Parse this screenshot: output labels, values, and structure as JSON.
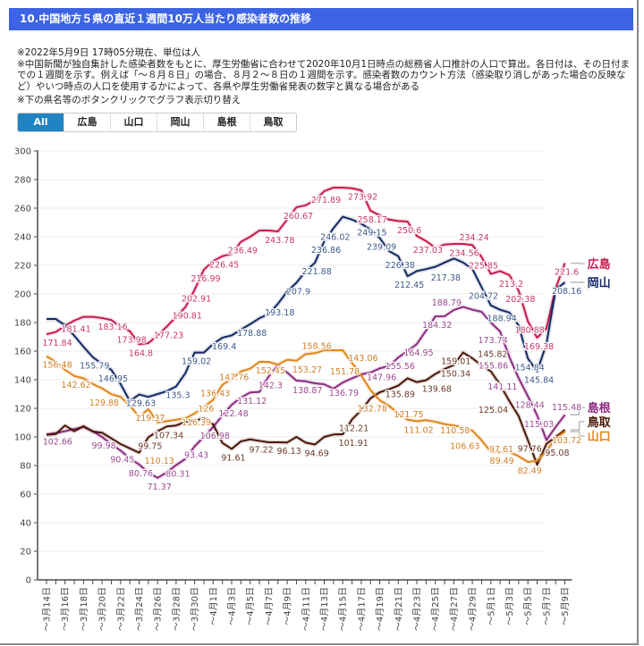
{
  "header": {
    "title": "10.中国地方５県の直近１週間10万人当たり感染者数の推移"
  },
  "notes": [
    "※2022年5月9日 17時05分現在、単位は人",
    "※中国新聞が独自集計した感染者数をもとに、厚生労働省に合わせて2020年10月1日時点の総務省人口推計の人口で算出。各日付は、その日付までの１週間を示す。例えば「～８月８日」の場合、８月２～８日の１週間を示す。感染者数のカウント方法（感染取り消しがあった場合の反映など）やいつ時点の人口を使用するかによって、各県や厚生労働省発表の数字と異なる場合がある",
    "※下の県名等のボタンクリックでグラフ表示切り替え"
  ],
  "buttons": [
    {
      "label": "All",
      "active": true
    },
    {
      "label": "広島",
      "active": false
    },
    {
      "label": "山口",
      "active": false
    },
    {
      "label": "岡山",
      "active": false
    },
    {
      "label": "島根",
      "active": false
    },
    {
      "label": "鳥取",
      "active": false
    }
  ],
  "chart_data": {
    "type": "line",
    "title": "",
    "xlabel": "",
    "ylabel": "",
    "ylim": [
      0,
      300
    ],
    "yticks": [
      0,
      20,
      40,
      60,
      80,
      100,
      120,
      140,
      160,
      180,
      200,
      220,
      240,
      260,
      280,
      300
    ],
    "grid": true,
    "legend": "right",
    "x": [
      "3/14",
      "3/15",
      "3/16",
      "3/17",
      "3/18",
      "3/19",
      "3/20",
      "3/21",
      "3/22",
      "3/23",
      "3/24",
      "3/25",
      "3/26",
      "3/27",
      "3/28",
      "3/29",
      "3/30",
      "3/31",
      "4/1",
      "4/2",
      "4/3",
      "4/4",
      "4/5",
      "4/6",
      "4/7",
      "4/8",
      "4/9",
      "4/10",
      "4/11",
      "4/12",
      "4/13",
      "4/14",
      "4/15",
      "4/16",
      "4/17",
      "4/18",
      "4/19",
      "4/20",
      "4/21",
      "4/22",
      "4/23",
      "4/24",
      "4/25",
      "4/26",
      "4/27",
      "4/28",
      "4/29",
      "4/30",
      "5/1",
      "5/2",
      "5/3",
      "5/4",
      "5/5",
      "5/6",
      "5/7",
      "5/8",
      "5/9"
    ],
    "xtick_labels": [
      "～3月14日",
      "～3月16日",
      "～3月18日",
      "～3月20日",
      "～3月22日",
      "～3月24日",
      "～3月26日",
      "～3月28日",
      "～3月30日",
      "～4月1日",
      "～4月3日",
      "～4月5日",
      "～4月7日",
      "～4月9日",
      "～4月11日",
      "～4月13日",
      "～4月15日",
      "～4月17日",
      "～4月19日",
      "～4月21日",
      "～4月23日",
      "～4月25日",
      "～4月27日",
      "～4月29日",
      "～5月1日",
      "～5月3日",
      "～5月5日",
      "～5月7日",
      "～5月9日"
    ],
    "series": [
      {
        "name": "広島",
        "color": "#c81a4b",
        "label_color": "#c8386a",
        "values": [
          171.84,
          173.4,
          177.7,
          181.41,
          184,
          184,
          183.16,
          181.8,
          177,
          173.98,
          164.8,
          165.6,
          171,
          177.23,
          184,
          190.81,
          202.91,
          216.99,
          223,
          226.45,
          228,
          236.49,
          240,
          244.4,
          244.4,
          243.78,
          252,
          260.67,
          262,
          265.6,
          271.89,
          274.4,
          274.4,
          273.92,
          272.5,
          258.17,
          255,
          252,
          251,
          250.6,
          240.6,
          237.03,
          232.3,
          234.56,
          235,
          235,
          234.24,
          225.85,
          214,
          216,
          213.2,
          202.38,
          180.88,
          169.38,
          176,
          204,
          221.6
        ],
        "labeled": [
          0,
          3,
          6,
          9,
          10,
          13,
          15,
          16,
          17,
          19,
          21,
          25,
          27,
          30,
          33,
          35,
          39,
          41,
          43,
          46,
          47,
          50,
          51,
          52,
          53,
          56
        ]
      },
      {
        "name": "岡山",
        "color": "#142a66",
        "label_color": "#3d5a8a",
        "values": [
          182.5,
          182.5,
          178,
          170.8,
          163,
          155.79,
          151,
          146.95,
          137,
          125,
          129.63,
          128,
          130,
          132,
          135.3,
          144.6,
          159.02,
          159,
          165,
          169.4,
          171,
          175,
          178.88,
          183,
          186,
          193.18,
          201.7,
          207.9,
          216,
          221.88,
          236.86,
          246.02,
          254,
          252,
          249.15,
          245,
          239.09,
          230,
          226.38,
          212.45,
          216,
          217.38,
          219,
          222,
          224.8,
          222,
          217.5,
          204.72,
          192,
          188.94,
          187,
          178,
          154.84,
          145.84,
          165,
          203,
          208.16
        ],
        "labeled": [
          5,
          7,
          10,
          14,
          16,
          19,
          22,
          25,
          27,
          29,
          30,
          31,
          34,
          36,
          38,
          39,
          41,
          47,
          49,
          52,
          53,
          56
        ]
      },
      {
        "name": "島根",
        "color": "#8c2a80",
        "label_color": "#9a4a90",
        "values": [
          101.7,
          102.66,
          104,
          105.5,
          107,
          104,
          99.98,
          95,
          90.45,
          85,
          80.76,
          75,
          71.37,
          75.2,
          80.31,
          84.6,
          93.43,
          100,
          106.98,
          115,
          122.48,
          127.5,
          131.12,
          131.5,
          142.3,
          150,
          145,
          139.4,
          138.87,
          137.5,
          136.79,
          133.75,
          138,
          141,
          143.75,
          145,
          147.96,
          149.6,
          155.56,
          160,
          164.95,
          174.4,
          184.32,
          184.4,
          188.79,
          191,
          189,
          187.5,
          180,
          173.74,
          155.86,
          141.11,
          128.44,
          115.03,
          97.9,
          107,
          115.48
        ],
        "labeled": [
          1,
          6,
          8,
          10,
          12,
          14,
          16,
          18,
          20,
          22,
          24,
          28,
          30,
          36,
          38,
          40,
          42,
          44,
          49,
          50,
          51,
          52,
          53,
          56
        ]
      },
      {
        "name": "鳥取",
        "color": "#4a1608",
        "label_color": "#6a3a28",
        "values": [
          101.5,
          102,
          108,
          104,
          107.5,
          103.75,
          103,
          99,
          95,
          92,
          89,
          99.75,
          104,
          107.34,
          108,
          110.6,
          111.5,
          113,
          108.75,
          95.8,
          91.61,
          96.9,
          98.3,
          97.22,
          96.25,
          96.25,
          96.13,
          100,
          96,
          94.69,
          100,
          101.7,
          101.91,
          112.21,
          118.75,
          127,
          131.25,
          133.3,
          135.89,
          141,
          138.3,
          139.68,
          144,
          147.5,
          150.34,
          159.01,
          155,
          150,
          145.82,
          136.5,
          125.04,
          114.6,
          97.76,
          80.6,
          95.08,
          100,
          105
        ],
        "labeled": [
          11,
          13,
          20,
          23,
          26,
          29,
          32,
          33,
          38,
          41,
          44,
          45,
          48,
          50,
          52,
          54
        ]
      },
      {
        "name": "山口",
        "color": "#e0861a",
        "label_color": "#d08028",
        "values": [
          156.48,
          152.5,
          147,
          142.62,
          141,
          137,
          134,
          129.88,
          128,
          122,
          114,
          119.37,
          110.13,
          111,
          112,
          113,
          116.39,
          121,
          126,
          136.43,
          140.6,
          145.8,
          147.76,
          152.5,
          152.45,
          150.6,
          154,
          153.27,
          158,
          158.56,
          160.6,
          160.6,
          160.6,
          151.78,
          143.06,
          132.78,
          125.6,
          121.75,
          116.3,
          112.1,
          111.02,
          111.7,
          110.58,
          109,
          108,
          106.63,
          104.4,
          97.61,
          89.6,
          89.49,
          89.6,
          86.5,
          82.49,
          83.3,
          90,
          99,
          103.72
        ],
        "labeled": [
          0,
          3,
          7,
          11,
          12,
          16,
          18,
          19,
          22,
          24,
          27,
          29,
          33,
          34,
          35,
          37,
          40,
          42,
          45,
          47,
          49,
          52,
          56
        ]
      }
    ]
  }
}
